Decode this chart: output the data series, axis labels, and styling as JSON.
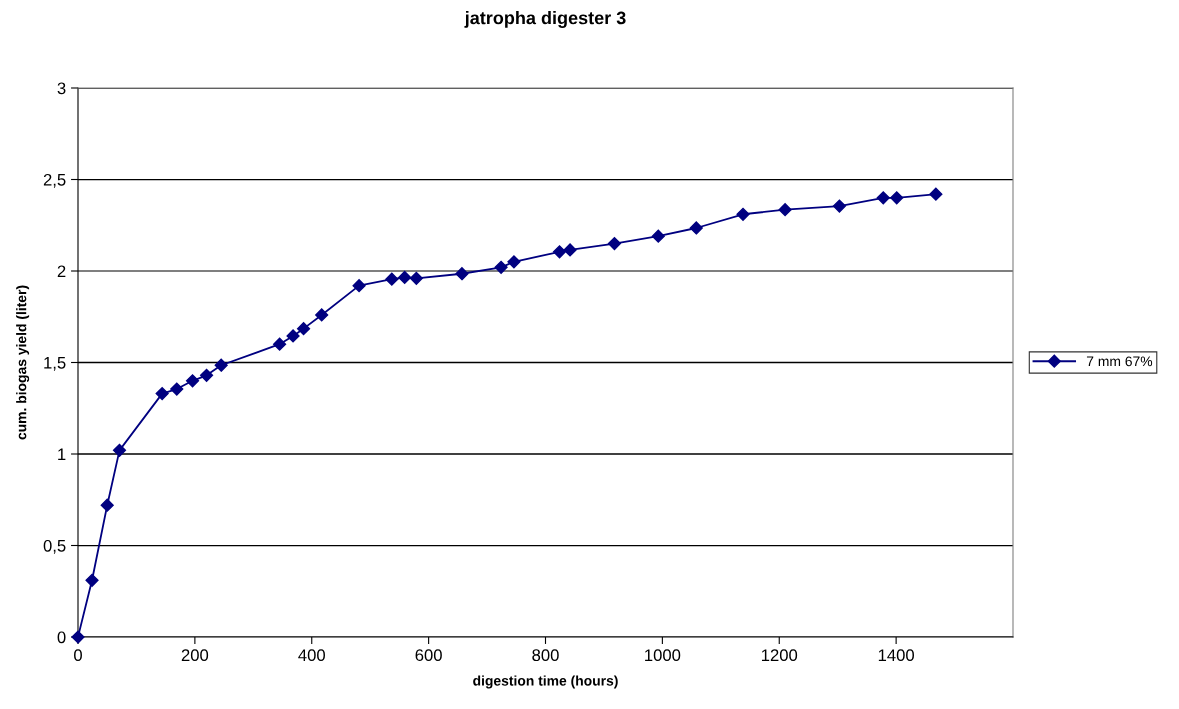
{
  "chart_data": {
    "type": "line",
    "title": "jatropha digester 3",
    "xlabel": "digestion time (hours)",
    "ylabel": "cum. biogas yield (liter)",
    "x": [
      0,
      24,
      50,
      71,
      144,
      169,
      196,
      220,
      245,
      345,
      368,
      386,
      417,
      481,
      537,
      559,
      579,
      657,
      724,
      746,
      824,
      842,
      918,
      993,
      1058,
      1138,
      1210,
      1303,
      1378,
      1401,
      1468
    ],
    "series": [
      {
        "name": "7 mm 67%",
        "color": "#000080",
        "values": [
          0,
          0.31,
          0.72,
          1.02,
          1.33,
          1.355,
          1.4,
          1.43,
          1.485,
          1.6,
          1.645,
          1.685,
          1.76,
          1.92,
          1.955,
          1.965,
          1.96,
          1.985,
          2.02,
          2.05,
          2.105,
          2.115,
          2.15,
          2.19,
          2.235,
          2.31,
          2.335,
          2.355,
          2.4,
          2.4,
          2.42
        ]
      }
    ],
    "xlim": [
      0,
      1600
    ],
    "xticks": [
      0,
      200,
      400,
      600,
      800,
      1000,
      1200,
      1400
    ],
    "ylim": [
      0,
      3
    ],
    "yticks": [
      {
        "value": 0,
        "label": "0"
      },
      {
        "value": 0.5,
        "label": "0,5"
      },
      {
        "value": 1,
        "label": "1"
      },
      {
        "value": 1.5,
        "label": "1,5"
      },
      {
        "value": 2,
        "label": "2"
      },
      {
        "value": 2.5,
        "label": "2,5"
      },
      {
        "value": 3,
        "label": "3"
      }
    ],
    "grid": "y",
    "legend": "right",
    "marker": "diamond",
    "line_style": "solid"
  }
}
